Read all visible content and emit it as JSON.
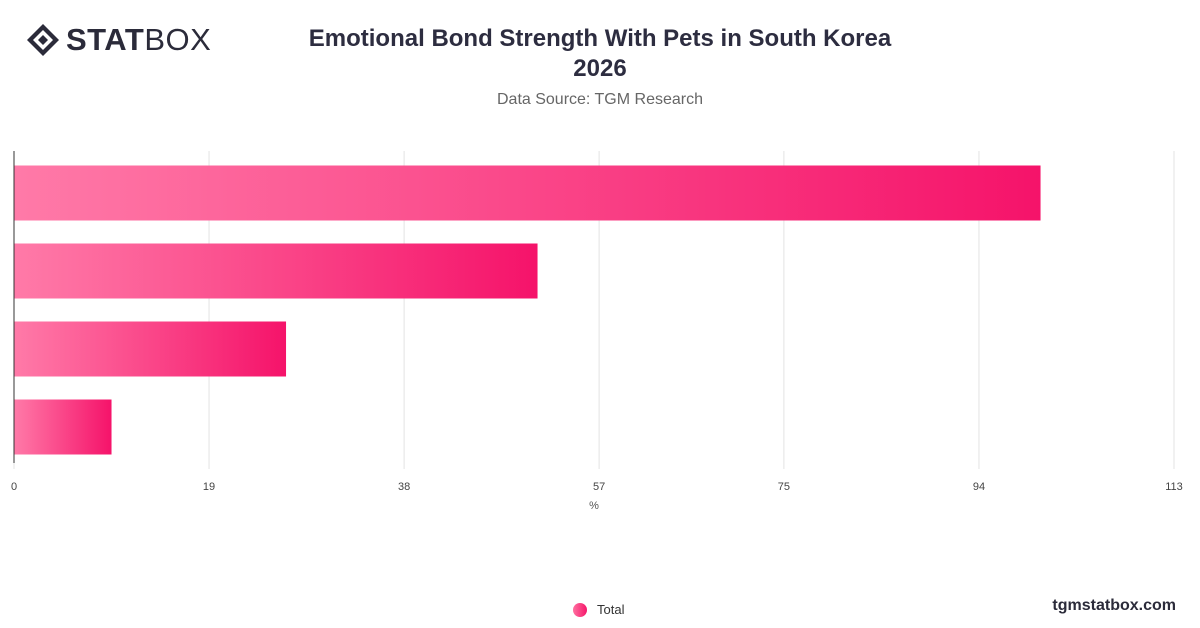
{
  "logo": {
    "text_bold": "STAT",
    "text_regular": "BOX",
    "icon": "statbox-diamond-icon"
  },
  "header": {
    "title_line1": "Emotional Bond Strength With Pets in South Korea",
    "title_line2": "2026",
    "source": "Data Source: TGM Research"
  },
  "legend": {
    "label": "Total"
  },
  "footer": {
    "brand": "tgmstatbox.com"
  },
  "colors": {
    "bar_start": "#ff7aa8",
    "bar_end": "#f5136a",
    "grid": "#e3e3e3",
    "axis": "#333333"
  },
  "chart_data": {
    "type": "bar",
    "orientation": "horizontal",
    "categories": [
      "",
      "",
      "",
      ""
    ],
    "series": [
      {
        "name": "Total",
        "values": [
          100,
          51,
          26.5,
          9.5
        ]
      }
    ],
    "xlim": [
      0,
      113
    ],
    "xticks": [
      "0",
      "19",
      "38",
      "57",
      "75",
      "94",
      "113"
    ],
    "xlabel": "%",
    "grid": true,
    "legend_position": "bottom"
  }
}
